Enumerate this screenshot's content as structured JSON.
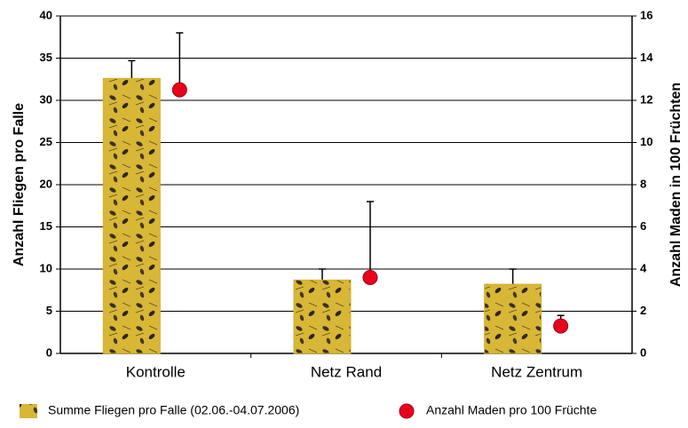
{
  "chart_data": {
    "type": "bar",
    "categories": [
      "Kontrolle",
      "Netz Rand",
      "Netz Zentrum"
    ],
    "ylabel": "Anzahl Fliegen pro Falle",
    "y2label": "Anzahl Maden in 100 Früchten",
    "ylim": [
      0,
      40
    ],
    "yticks": [
      0,
      5,
      10,
      15,
      20,
      25,
      30,
      35,
      40
    ],
    "y2lim": [
      0,
      16
    ],
    "y2ticks": [
      0,
      2,
      4,
      6,
      8,
      10,
      12,
      14,
      16
    ],
    "grid": true,
    "series": [
      {
        "name": "Summe Fliegen pro Falle (02.06.-04.07.2006)",
        "type": "bar",
        "color": "#d2b02c",
        "values": [
          32.6,
          8.7,
          8.2
        ],
        "errors": [
          2.1,
          1.3,
          1.8
        ]
      },
      {
        "name": "Anzahl Maden pro 100 Früchte",
        "type": "scatter",
        "axis": "y2",
        "color": "#e8001c",
        "values": [
          12.5,
          3.6,
          1.3
        ],
        "errors": [
          2.7,
          3.6,
          0.5
        ]
      }
    ]
  }
}
